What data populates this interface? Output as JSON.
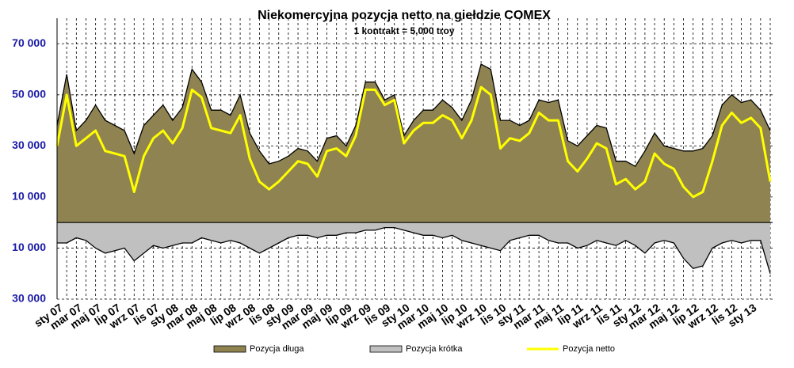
{
  "chart_data": {
    "type": "area",
    "title": "Niekomercyjna pozycja netto na giełdzie COMEX",
    "subtitle": "1 kontrakt = 5,000 troy",
    "categories": [
      "sty 07",
      null,
      "mar 07",
      null,
      "maj 07",
      null,
      "lip 07",
      null,
      "wrz 07",
      null,
      "lis 07",
      null,
      "sty 08",
      null,
      "mar 08",
      null,
      "maj 08",
      null,
      "lip 08",
      null,
      "wrz 08",
      null,
      "lis 08",
      null,
      "sty 09",
      null,
      "mar 09",
      null,
      "maj 09",
      null,
      "lip 09",
      null,
      "wrz 09",
      null,
      "lis 09",
      null,
      "sty 10",
      null,
      "mar 10",
      null,
      "maj 10",
      null,
      "lip 10",
      null,
      "wrz 10",
      null,
      "lis 10",
      null,
      "sty 11",
      null,
      "mar 11",
      null,
      "maj 11",
      null,
      "lip 11",
      null,
      "wrz 11",
      null,
      "lis 11",
      null,
      "sty 12",
      null,
      "mar 12",
      null,
      "maj 12",
      null,
      "lip 12",
      null,
      "wrz 12",
      null,
      "lis 12",
      null,
      "sty 13",
      null,
      null
    ],
    "series": [
      {
        "name": "Pozycja długa",
        "type": "area",
        "color": "#8f8352",
        "values": [
          38000,
          58000,
          36000,
          40000,
          46000,
          40000,
          38000,
          36000,
          27000,
          38000,
          42000,
          46000,
          40000,
          45000,
          60000,
          55000,
          44000,
          44000,
          42000,
          50000,
          35000,
          28000,
          23000,
          24000,
          26000,
          29000,
          28000,
          24000,
          33000,
          34000,
          30000,
          38000,
          55000,
          55000,
          48000,
          50000,
          34000,
          40000,
          44000,
          44000,
          48000,
          45000,
          40000,
          48000,
          62000,
          60000,
          40000,
          40000,
          38000,
          40000,
          48000,
          47000,
          48000,
          32000,
          30000,
          34000,
          38000,
          37000,
          24000,
          24000,
          22000,
          28000,
          35000,
          30000,
          29000,
          28000,
          28000,
          29000,
          34000,
          46000,
          50000,
          47000,
          48000,
          44000,
          36000
        ]
      },
      {
        "name": "Pozycja krótka",
        "type": "area",
        "color": "#c0c0c0",
        "values": [
          -8000,
          -8000,
          -6000,
          -7000,
          -10000,
          -12000,
          -11000,
          -10000,
          -15000,
          -12000,
          -9000,
          -10000,
          -9000,
          -8000,
          -8000,
          -6000,
          -7000,
          -8000,
          -7000,
          -8000,
          -10000,
          -12000,
          -10000,
          -8000,
          -6000,
          -5000,
          -5000,
          -6000,
          -5000,
          -5000,
          -4000,
          -4000,
          -3000,
          -3000,
          -2000,
          -2000,
          -3000,
          -4000,
          -5000,
          -5000,
          -6000,
          -5000,
          -7000,
          -8000,
          -9000,
          -10000,
          -11000,
          -7000,
          -6000,
          -5000,
          -5000,
          -7000,
          -8000,
          -8000,
          -10000,
          -9000,
          -7000,
          -8000,
          -9000,
          -7000,
          -9000,
          -12000,
          -8000,
          -7000,
          -8000,
          -14000,
          -18000,
          -17000,
          -10000,
          -8000,
          -7000,
          -8000,
          -7000,
          -7000,
          -20000
        ]
      },
      {
        "name": "Pozycja netto",
        "type": "line",
        "color": "#ffff00",
        "values": [
          30000,
          50000,
          30000,
          33000,
          36000,
          28000,
          27000,
          26000,
          12000,
          26000,
          33000,
          36000,
          31000,
          37000,
          52000,
          49000,
          37000,
          36000,
          35000,
          42000,
          25000,
          16000,
          13000,
          16000,
          20000,
          24000,
          23000,
          18000,
          28000,
          29000,
          26000,
          34000,
          52000,
          52000,
          46000,
          48000,
          31000,
          36000,
          39000,
          39000,
          42000,
          40000,
          33000,
          40000,
          53000,
          50000,
          29000,
          33000,
          32000,
          35000,
          43000,
          40000,
          40000,
          24000,
          20000,
          25000,
          31000,
          29000,
          15000,
          17000,
          13000,
          16000,
          27000,
          23000,
          21000,
          14000,
          10000,
          12000,
          24000,
          38000,
          43000,
          39000,
          41000,
          37000,
          16000
        ]
      }
    ],
    "ylim": [
      -30000,
      80000
    ],
    "yticks": [
      {
        "value": 70000,
        "label": "70 000"
      },
      {
        "value": 50000,
        "label": "50 000"
      },
      {
        "value": 30000,
        "label": "30 000"
      },
      {
        "value": 10000,
        "label": "10 000"
      },
      {
        "value": -10000,
        "label": "10 000"
      },
      {
        "value": -30000,
        "label": "30 000"
      }
    ],
    "grid": true,
    "legend": "bottom"
  }
}
